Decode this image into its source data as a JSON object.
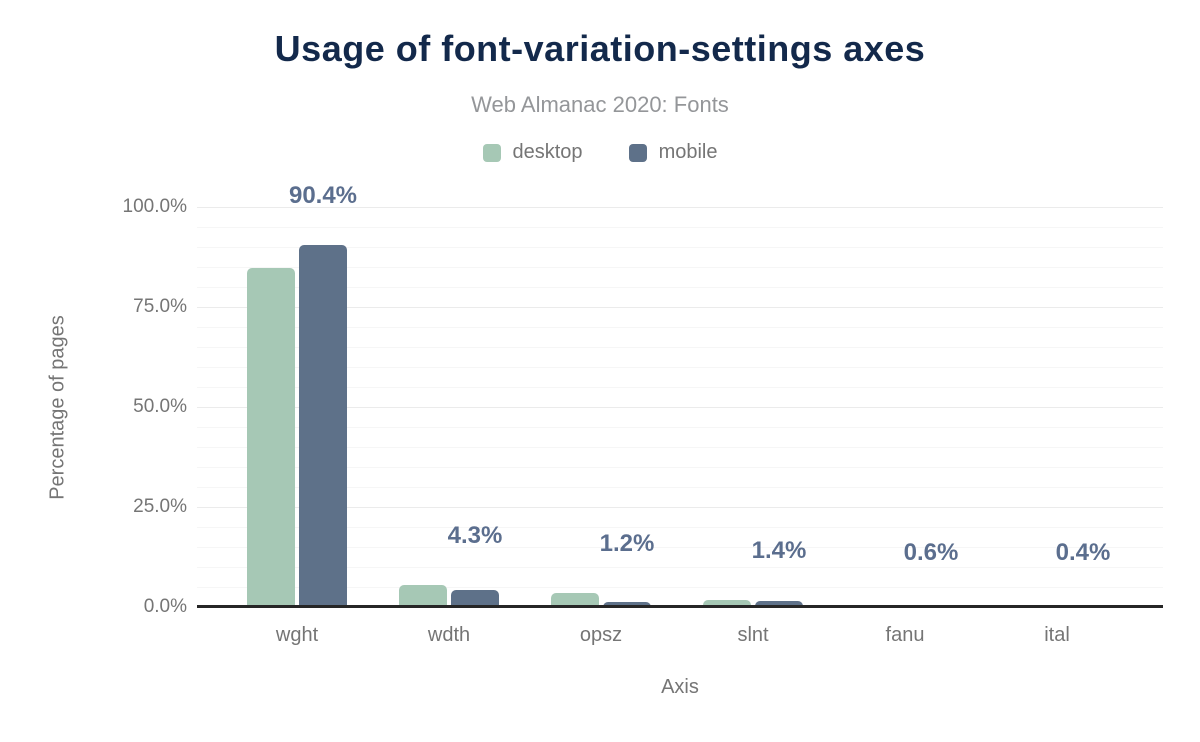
{
  "chart_data": {
    "type": "bar",
    "title": "Usage of font-variation-settings axes",
    "subtitle": "Web Almanac 2020: Fonts",
    "xlabel": "Axis",
    "ylabel": "Percentage of pages",
    "categories": [
      "wght",
      "wdth",
      "opsz",
      "slnt",
      "fanu",
      "ital"
    ],
    "series": [
      {
        "name": "desktop",
        "color": "#a6c8b5",
        "values": [
          84.7,
          5.6,
          3.6,
          1.8,
          0.5,
          0.5
        ]
      },
      {
        "name": "mobile",
        "color": "#5e7189",
        "values": [
          90.4,
          4.3,
          1.2,
          1.4,
          0.6,
          0.4
        ]
      }
    ],
    "bar_value_labels": [
      "90.4%",
      "4.3%",
      "1.2%",
      "1.4%",
      "0.6%",
      "0.4%"
    ],
    "labeled_series": "mobile",
    "y_ticks": [
      {
        "value": 0,
        "label": "0.0%"
      },
      {
        "value": 25,
        "label": "25.0%"
      },
      {
        "value": 50,
        "label": "50.0%"
      },
      {
        "value": 75,
        "label": "75.0%"
      },
      {
        "value": 100,
        "label": "100.0%"
      }
    ],
    "ylim": [
      0,
      100
    ],
    "grid": "horizontal, minor every 5%, major every 25%",
    "legend_position": "top"
  },
  "colors": {
    "title": "#13294b",
    "subtitle": "#949699",
    "axis_text": "#757575",
    "value_label": "#5b6e8e",
    "axis_line": "#262626",
    "gridline_major": "#ebebeb",
    "gridline_minor": "#f6f6f6",
    "desktop_bar": "#a6c8b5",
    "mobile_bar": "#5e7189",
    "background": "#ffffff"
  }
}
